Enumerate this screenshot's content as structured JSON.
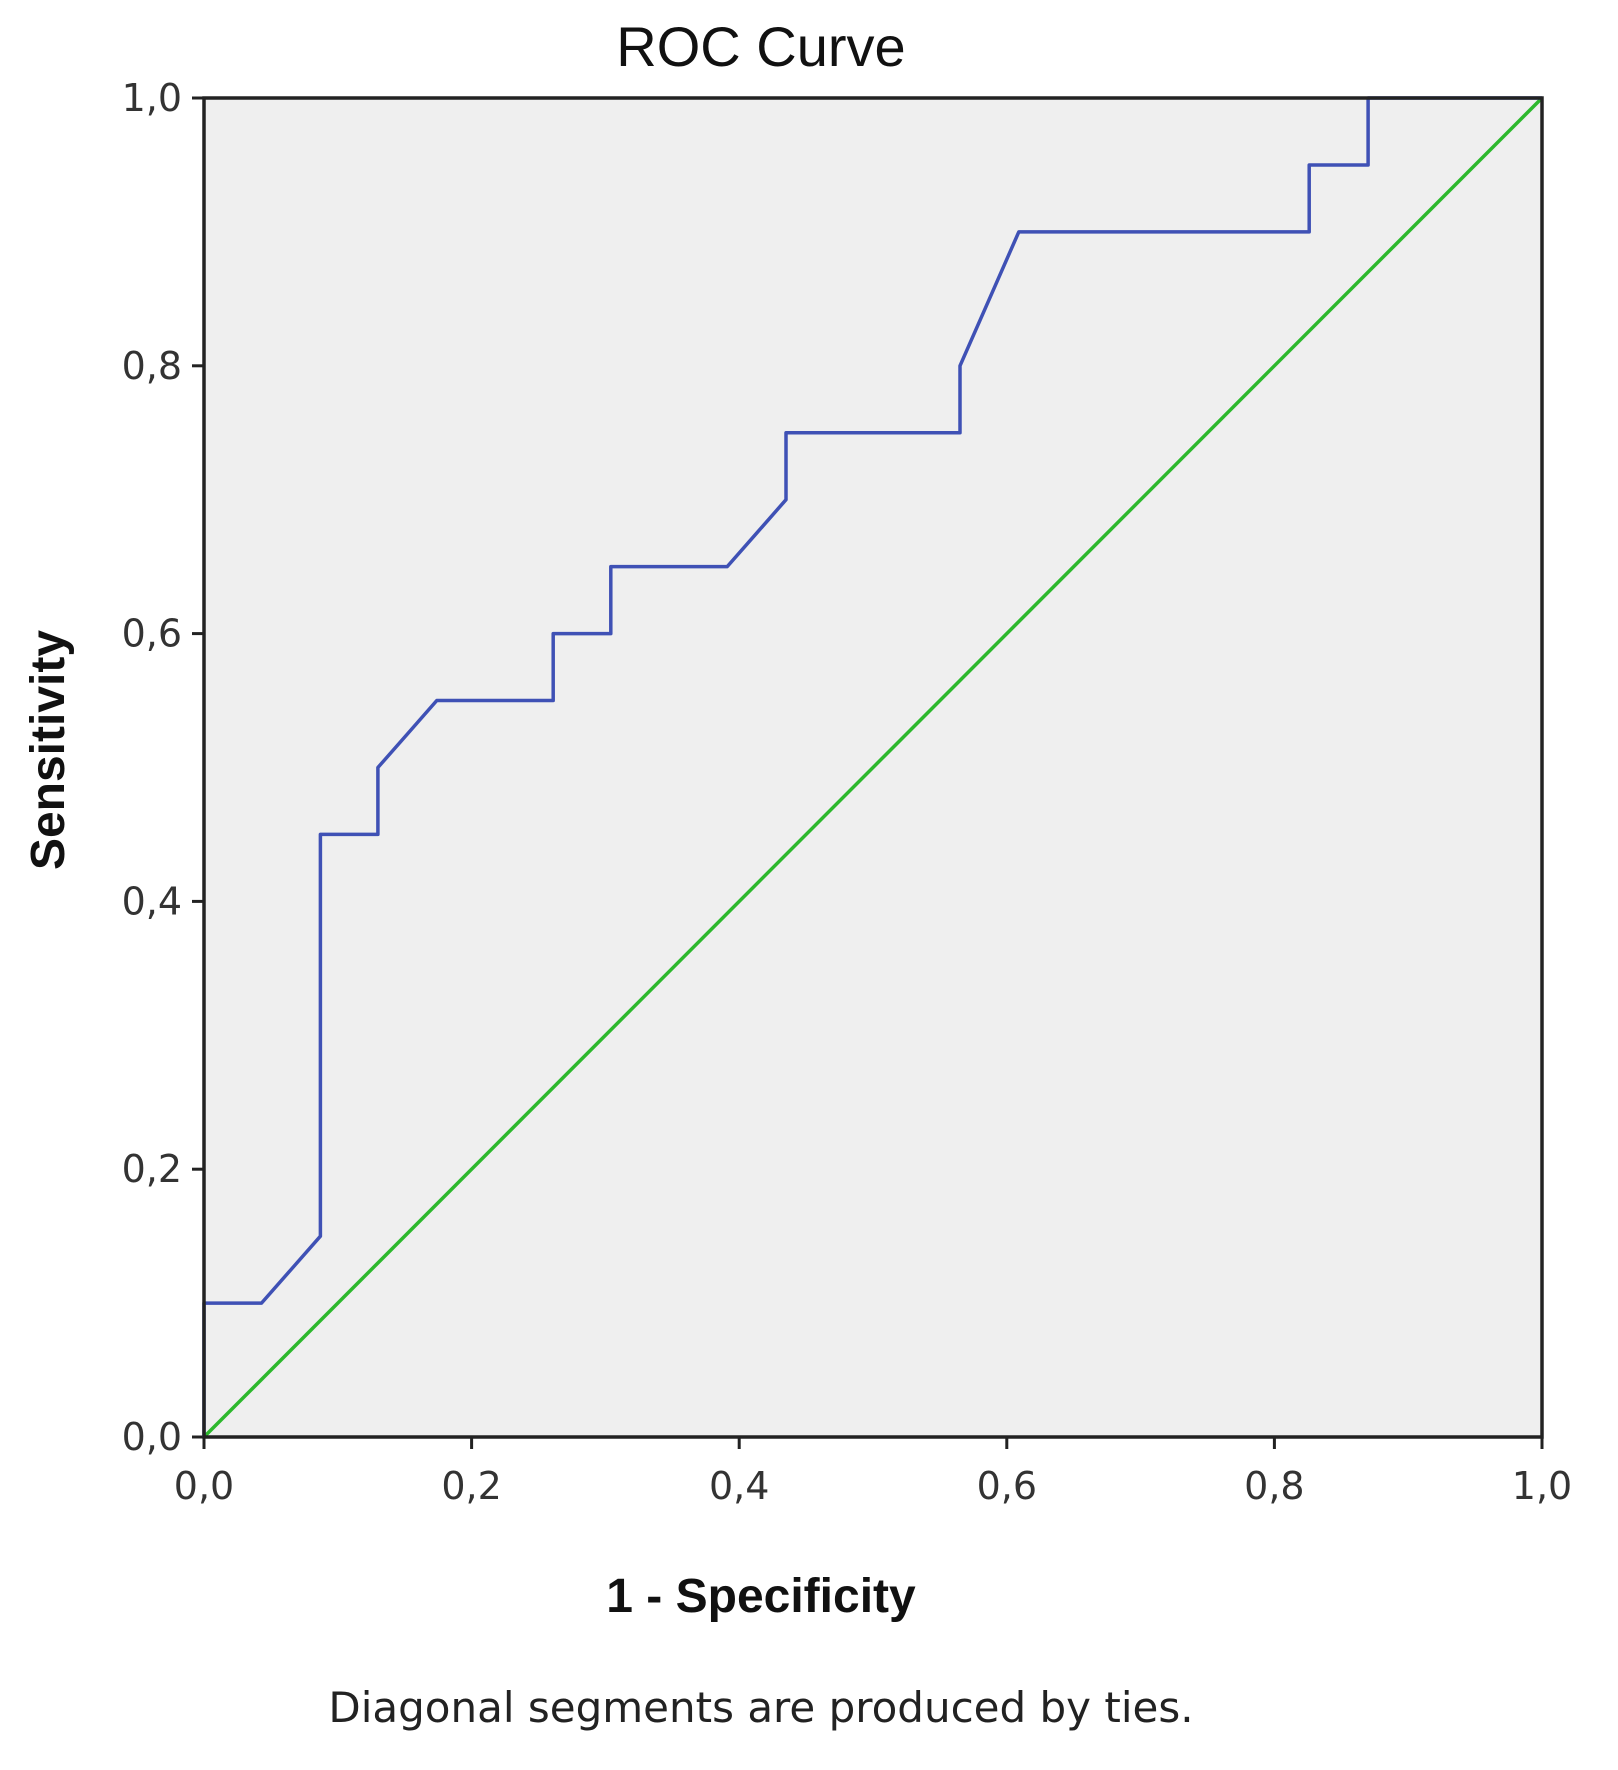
{
  "chart_data": {
    "type": "line",
    "title": "ROC Curve",
    "xlabel": "1 - Specificity",
    "ylabel": "Sensitivity",
    "xlim": [
      0,
      1
    ],
    "ylim": [
      0,
      1
    ],
    "x_ticks": [
      "0,0",
      "0,2",
      "0,4",
      "0,6",
      "0,8",
      "1,0"
    ],
    "y_ticks": [
      "0,0",
      "0,2",
      "0,4",
      "0,6",
      "0,8",
      "1,0"
    ],
    "x_tick_values": [
      0,
      0.2,
      0.4,
      0.6,
      0.8,
      1.0
    ],
    "y_tick_values": [
      0,
      0.2,
      0.4,
      0.6,
      0.8,
      1.0
    ],
    "grid": false,
    "footnote": "Diagonal segments are produced by ties.",
    "colors": {
      "plot_background": "#efefef",
      "roc_line": "#3f51b5",
      "reference_line": "#2db82d",
      "frame": "#222222"
    },
    "series": [
      {
        "values": [
          [
            0.0,
            0.0
          ],
          [
            0.0,
            0.1
          ],
          [
            0.043,
            0.1
          ],
          [
            0.065,
            0.125
          ],
          [
            0.087,
            0.15
          ],
          [
            0.087,
            0.45
          ],
          [
            0.13,
            0.45
          ],
          [
            0.13,
            0.5
          ],
          [
            0.152,
            0.525
          ],
          [
            0.174,
            0.55
          ],
          [
            0.261,
            0.55
          ],
          [
            0.261,
            0.6
          ],
          [
            0.304,
            0.6
          ],
          [
            0.304,
            0.65
          ],
          [
            0.391,
            0.65
          ],
          [
            0.413,
            0.675
          ],
          [
            0.435,
            0.7
          ],
          [
            0.435,
            0.75
          ],
          [
            0.565,
            0.75
          ],
          [
            0.565,
            0.8
          ],
          [
            0.587,
            0.85
          ],
          [
            0.609,
            0.9
          ],
          [
            0.826,
            0.9
          ],
          [
            0.826,
            0.95
          ],
          [
            0.87,
            0.95
          ],
          [
            0.87,
            1.0
          ],
          [
            1.0,
            1.0
          ]
        ]
      },
      {
        "values": [
          [
            0.0,
            0.0
          ],
          [
            1.0,
            1.0
          ]
        ]
      }
    ]
  }
}
